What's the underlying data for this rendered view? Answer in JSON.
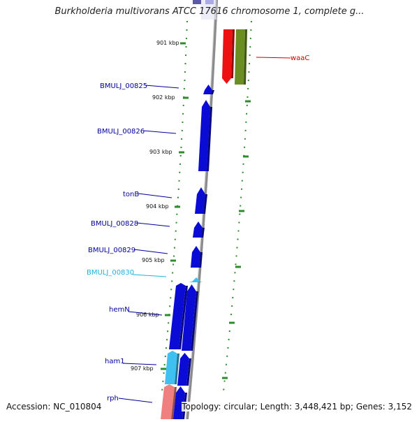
{
  "title": "Burkholderia multivorans ATCC 17616 chromosome 1, complete g...",
  "accession_text": "Accession: NC_010804",
  "summary_text": "Topology: circular; Length: 3,448,421 bp; Genes: 3,152",
  "colors": {
    "forward_gene": "#0b0bd6",
    "highlight_gene": "#3ec0f0",
    "rrna_like_gene": "#f08080",
    "reverse_red_gene": "#ee1111",
    "reverse_olive_gene": "#6b8e23",
    "tick": "#2e8b2e",
    "label_default": "#00009a",
    "label_highlight": "#22b0e0",
    "label_reverse": "#cc0000",
    "backbone": "#8c8c8c"
  },
  "kbp_ticks": [
    "901 kbp",
    "902 kbp",
    "903 kbp",
    "904 kbp",
    "905 kbp",
    "906 kbp",
    "907 kbp"
  ],
  "gene_labels": [
    {
      "text": "BMULJ_00825",
      "kind": "default"
    },
    {
      "text": "BMULJ_00826",
      "kind": "default"
    },
    {
      "text": "tonB",
      "kind": "default"
    },
    {
      "text": "BMULJ_00828",
      "kind": "default"
    },
    {
      "text": "BMULJ_00829",
      "kind": "default"
    },
    {
      "text": "BMULJ_00830",
      "kind": "highlight"
    },
    {
      "text": "hemN",
      "kind": "default"
    },
    {
      "text": "ham1",
      "kind": "default"
    },
    {
      "text": "rph",
      "kind": "default"
    },
    {
      "text": "waaC",
      "kind": "reverse"
    }
  ]
}
